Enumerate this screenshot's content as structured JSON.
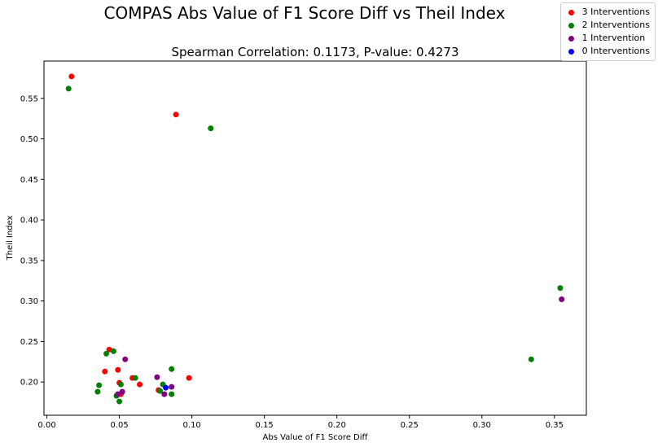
{
  "chart_data": {
    "type": "scatter",
    "title": "COMPAS Abs Value of F1 Score Diff vs Theil Index",
    "subtitle": "Spearman Correlation: 0.1173, P-value: 0.4273",
    "xlabel": "Abs Value of F1 Score Diff",
    "ylabel": "Theil Index",
    "xlim": [
      -0.002,
      0.372
    ],
    "ylim": [
      0.159,
      0.596
    ],
    "xticks": [
      "0.00",
      "0.05",
      "0.10",
      "0.15",
      "0.20",
      "0.25",
      "0.30",
      "0.35"
    ],
    "yticks": [
      "0.20",
      "0.25",
      "0.30",
      "0.35",
      "0.40",
      "0.45",
      "0.50",
      "0.55"
    ],
    "grid": false,
    "legend_position": "top-right",
    "series": [
      {
        "name": "3 Interventions",
        "color": "#ff0000",
        "points": [
          {
            "x": 0.017,
            "y": 0.577
          },
          {
            "x": 0.089,
            "y": 0.53
          },
          {
            "x": 0.043,
            "y": 0.24
          },
          {
            "x": 0.04,
            "y": 0.213
          },
          {
            "x": 0.049,
            "y": 0.215
          },
          {
            "x": 0.05,
            "y": 0.199
          },
          {
            "x": 0.059,
            "y": 0.205
          },
          {
            "x": 0.064,
            "y": 0.197
          },
          {
            "x": 0.098,
            "y": 0.205
          },
          {
            "x": 0.077,
            "y": 0.19
          },
          {
            "x": 0.051,
            "y": 0.185
          }
        ]
      },
      {
        "name": "2 Interventions",
        "color": "#008000",
        "points": [
          {
            "x": 0.015,
            "y": 0.562
          },
          {
            "x": 0.113,
            "y": 0.513
          },
          {
            "x": 0.354,
            "y": 0.316
          },
          {
            "x": 0.334,
            "y": 0.228
          },
          {
            "x": 0.046,
            "y": 0.238
          },
          {
            "x": 0.041,
            "y": 0.235
          },
          {
            "x": 0.036,
            "y": 0.196
          },
          {
            "x": 0.035,
            "y": 0.188
          },
          {
            "x": 0.048,
            "y": 0.183
          },
          {
            "x": 0.05,
            "y": 0.176
          },
          {
            "x": 0.051,
            "y": 0.197
          },
          {
            "x": 0.061,
            "y": 0.205
          },
          {
            "x": 0.086,
            "y": 0.216
          },
          {
            "x": 0.08,
            "y": 0.197
          },
          {
            "x": 0.086,
            "y": 0.185
          },
          {
            "x": 0.078,
            "y": 0.189
          }
        ]
      },
      {
        "name": "1 Intervention",
        "color": "#800080",
        "points": [
          {
            "x": 0.355,
            "y": 0.302
          },
          {
            "x": 0.054,
            "y": 0.228
          },
          {
            "x": 0.076,
            "y": 0.206
          },
          {
            "x": 0.086,
            "y": 0.194
          },
          {
            "x": 0.081,
            "y": 0.185
          },
          {
            "x": 0.052,
            "y": 0.188
          },
          {
            "x": 0.049,
            "y": 0.185
          }
        ]
      },
      {
        "name": "0 Interventions",
        "color": "#0000ff",
        "points": [
          {
            "x": 0.082,
            "y": 0.193
          }
        ]
      }
    ]
  }
}
